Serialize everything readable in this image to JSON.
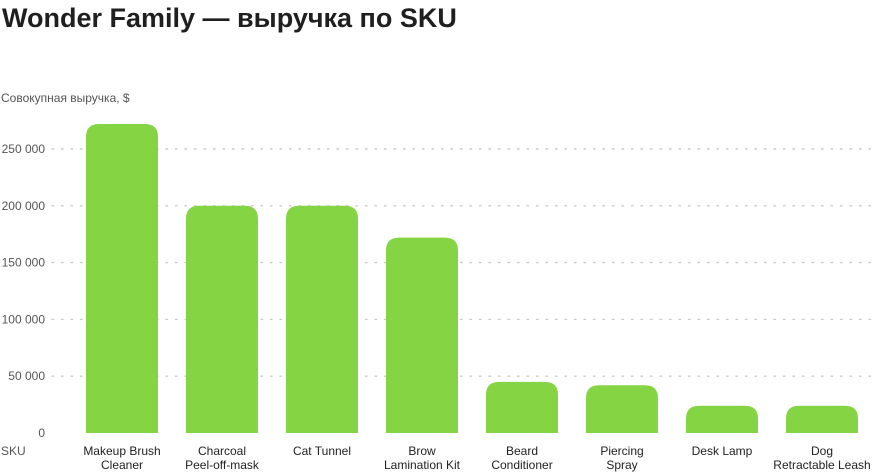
{
  "chart_data": {
    "type": "bar",
    "title": "Wonder Family — выручка по SKU",
    "ylabel": "Совокупная выручка, $",
    "xlabel": "SKU",
    "categories": [
      [
        "Makeup Brush",
        "Cleaner"
      ],
      [
        "Charcoal",
        "Peel-off-mask"
      ],
      [
        "Cat Tunnel"
      ],
      [
        "Brow",
        "Lamination Kit"
      ],
      [
        "Beard",
        "Conditioner"
      ],
      [
        "Piercing",
        "Spray"
      ],
      [
        "Desk Lamp"
      ],
      [
        "Dog",
        "Retractable Leash"
      ]
    ],
    "values": [
      272000,
      200000,
      200000,
      172000,
      45000,
      42000,
      24000,
      24000
    ],
    "ylim": [
      0,
      280000
    ],
    "yticks": [
      0,
      50000,
      100000,
      150000,
      200000,
      250000
    ],
    "ytick_labels": [
      "0",
      "50 000",
      "100 000",
      "150 000",
      "200 000",
      "250 000"
    ],
    "grid": true,
    "bar_color": "#84d444",
    "text_color": "#555555",
    "grid_color": "#c9c9c9"
  }
}
